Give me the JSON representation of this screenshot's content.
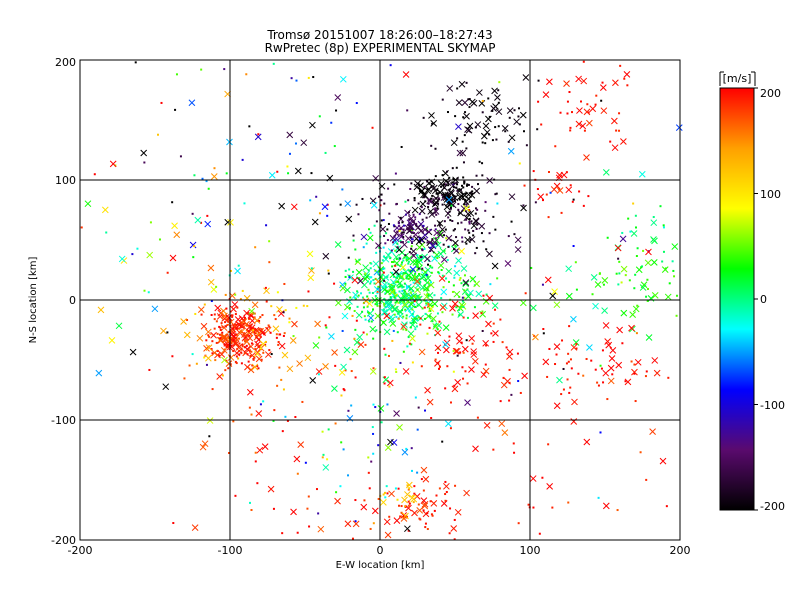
{
  "chart_data": {
    "type": "scatter",
    "title": "Tromsø 20151007 18:26:00–18:27:43",
    "subtitle": "RwPretec (8p) EXPERIMENTAL SKYMAP",
    "xlabel": "E-W location [km]",
    "ylabel": "N-S location [km]",
    "xlim": [
      -200,
      200
    ],
    "ylim": [
      -200,
      200
    ],
    "xticks": [
      "-200",
      "-100",
      "0",
      "100",
      "200"
    ],
    "yticks": [
      "-200",
      "-100",
      "0",
      "100",
      "200"
    ],
    "grid": true,
    "markers": [
      "cross",
      "dot"
    ],
    "colorbar": {
      "label": "[m/s]",
      "range": [
        -200,
        200
      ],
      "ticks": [
        "200",
        "100",
        "0",
        "-100",
        "-200"
      ],
      "colormap": [
        "#000000",
        "#5a0a6e",
        "#0000ff",
        "#00ffff",
        "#00ff00",
        "#ffff00",
        "#ffa000",
        "#ff0000"
      ]
    },
    "clusters": [
      {
        "x": -95,
        "y": -30,
        "sx": 12,
        "sy": 12,
        "n": 260,
        "v": 185,
        "vs": 15
      },
      {
        "x": 10,
        "y": 10,
        "sx": 18,
        "sy": 20,
        "n": 380,
        "v": 10,
        "vs": 25
      },
      {
        "x": 30,
        "y": 5,
        "sx": 20,
        "sy": 20,
        "n": 140,
        "v": 35,
        "vs": 20
      },
      {
        "x": 40,
        "y": 70,
        "sx": 25,
        "sy": 20,
        "n": 230,
        "v": -180,
        "vs": 20
      },
      {
        "x": 45,
        "y": 90,
        "sx": 10,
        "sy": 7,
        "n": 90,
        "v": -200,
        "vs": 6
      },
      {
        "x": 20,
        "y": 55,
        "sx": 10,
        "sy": 8,
        "n": 70,
        "v": -150,
        "vs": 20
      },
      {
        "x": 70,
        "y": 150,
        "sx": 20,
        "sy": 18,
        "n": 80,
        "v": -195,
        "vs": 10
      },
      {
        "x": 140,
        "y": 160,
        "sx": 15,
        "sy": 25,
        "n": 45,
        "v": 195,
        "vs": 8
      },
      {
        "x": 115,
        "y": 95,
        "sx": 12,
        "sy": 10,
        "n": 25,
        "v": 195,
        "vs": 8
      },
      {
        "x": 160,
        "y": 10,
        "sx": 25,
        "sy": 20,
        "n": 60,
        "v": 30,
        "vs": 20
      },
      {
        "x": 185,
        "y": 50,
        "sx": 12,
        "sy": 25,
        "n": 25,
        "v": 10,
        "vs": 20
      },
      {
        "x": 60,
        "y": -45,
        "sx": 30,
        "sy": 25,
        "n": 90,
        "v": 195,
        "vs": 10
      },
      {
        "x": 140,
        "y": -55,
        "sx": 25,
        "sy": 15,
        "n": 55,
        "v": 195,
        "vs": 10
      },
      {
        "x": 25,
        "y": -175,
        "sx": 15,
        "sy": 12,
        "n": 60,
        "v": 190,
        "vs": 15
      },
      {
        "x": 15,
        "y": -165,
        "sx": 8,
        "sy": 6,
        "n": 15,
        "v": 120,
        "vs": 10
      },
      {
        "x": -100,
        "y": -20,
        "sx": 20,
        "sy": 25,
        "n": 35,
        "v": 120,
        "vs": 40
      },
      {
        "x": -30,
        "y": -30,
        "sx": 40,
        "sy": 30,
        "n": 80,
        "v": 150,
        "vs": 60
      },
      {
        "x": -10,
        "y": -110,
        "sx": 20,
        "sy": 30,
        "n": 40,
        "v": -40,
        "vs": 80
      },
      {
        "x": -80,
        "y": 130,
        "sx": 50,
        "sy": 40,
        "n": 50,
        "v": -80,
        "vs": 150
      },
      {
        "x": -150,
        "y": 50,
        "sx": 30,
        "sy": 60,
        "n": 30,
        "v": 50,
        "vs": 100
      },
      {
        "x": 120,
        "y": -150,
        "sx": 40,
        "sy": 40,
        "n": 30,
        "v": 195,
        "vs": 15
      },
      {
        "x": -20,
        "y": -170,
        "sx": 40,
        "sy": 20,
        "n": 25,
        "v": 190,
        "vs": 20
      },
      {
        "x": -90,
        "y": -120,
        "sx": 30,
        "sy": 40,
        "n": 25,
        "v": 190,
        "vs": 20
      },
      {
        "x": 0,
        "y": 0,
        "sx": 110,
        "sy": 110,
        "n": 170,
        "v": 0,
        "vs": 170
      }
    ]
  }
}
